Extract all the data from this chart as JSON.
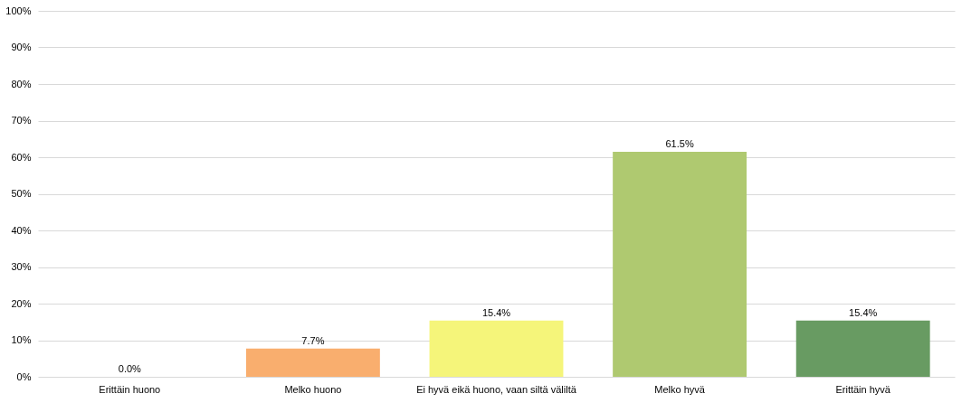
{
  "chart_data": {
    "type": "bar",
    "categories": [
      "Erittäin huono",
      "Melko huono",
      "Ei hyvä eikä huono, vaan siltä väliltä",
      "Melko hyvä",
      "Erittäin hyvä"
    ],
    "values": [
      0,
      7.7,
      15.4,
      61.5,
      15.4
    ],
    "colors": [
      "#e8746b",
      "#f9ae6e",
      "#f5f57a",
      "#afc970",
      "#689b62"
    ],
    "value_labels": [
      "0.0%",
      "7.7%",
      "15.4%",
      "61.5%",
      "15.4%"
    ],
    "ylim": [
      0,
      100
    ],
    "yticks": [
      {
        "value": 0,
        "label": "0%"
      },
      {
        "value": 10,
        "label": "10%"
      },
      {
        "value": 20,
        "label": "20%"
      },
      {
        "value": 30,
        "label": "30%"
      },
      {
        "value": 40,
        "label": "40%"
      },
      {
        "value": 50,
        "label": "50%"
      },
      {
        "value": 60,
        "label": "60%"
      },
      {
        "value": 70,
        "label": "70%"
      },
      {
        "value": 80,
        "label": "80%"
      },
      {
        "value": 90,
        "label": "90%"
      },
      {
        "value": 100,
        "label": "100%"
      }
    ],
    "grid": "y"
  }
}
